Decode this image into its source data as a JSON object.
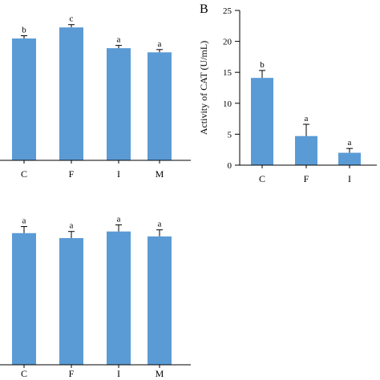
{
  "chart_data": [
    {
      "type": "bar",
      "panel_label": "",
      "categories": [
        "C",
        "F",
        "I",
        "M"
      ],
      "values": [
        0.88,
        0.96,
        0.81,
        0.78
      ],
      "errors": [
        0.02,
        0.02,
        0.02,
        0.02
      ],
      "significance": [
        "b",
        "c",
        "a",
        "a"
      ],
      "ylabel": "",
      "ylim": [
        0,
        1.1
      ],
      "bar_color": "#5b9bd5",
      "y_axis_visible": false
    },
    {
      "type": "bar",
      "panel_label": "B",
      "categories": [
        "C",
        "F",
        "I"
      ],
      "values": [
        14.1,
        4.7,
        2.0
      ],
      "errors": [
        1.2,
        1.9,
        0.7
      ],
      "significance": [
        "b",
        "a",
        "a"
      ],
      "ylabel": "Activity of CAT (U/mL)",
      "ylim": [
        0,
        25
      ],
      "yticks": [
        0,
        5,
        10,
        15,
        20,
        25
      ],
      "bar_color": "#5b9bd5",
      "y_axis_visible": true
    },
    {
      "type": "bar",
      "panel_label": "",
      "categories": [
        "C",
        "F",
        "I",
        "M"
      ],
      "values": [
        0.8,
        0.77,
        0.81,
        0.78
      ],
      "errors": [
        0.04,
        0.04,
        0.04,
        0.04
      ],
      "significance": [
        "a",
        "a",
        "a",
        "a"
      ],
      "ylabel": "",
      "ylim": [
        0,
        0.95
      ],
      "bar_color": "#5b9bd5",
      "y_axis_visible": false
    }
  ]
}
